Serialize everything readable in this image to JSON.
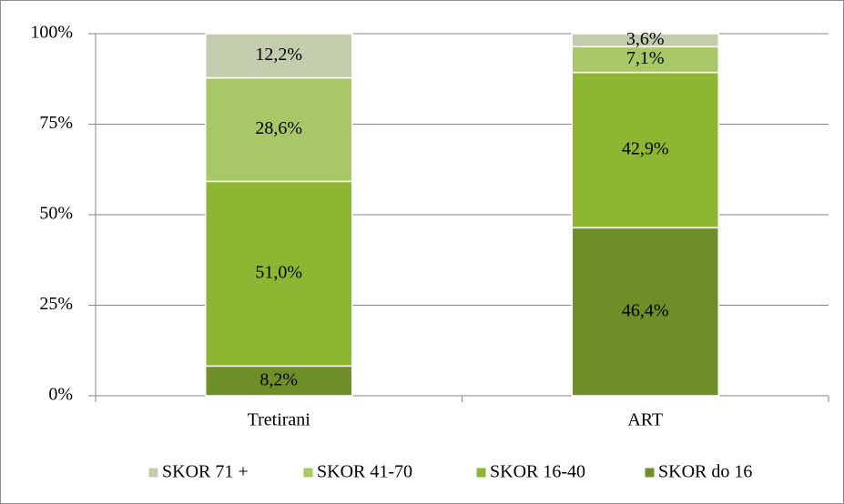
{
  "chart_data": {
    "type": "stacked_bar",
    "categories": [
      "Tretirani",
      "ART"
    ],
    "series": [
      {
        "name": "SKOR 71 +",
        "color": "#c3cdae",
        "values": [
          12.2,
          3.6
        ],
        "value_labels": [
          "12,2%",
          "3,6%"
        ]
      },
      {
        "name": "SKOR 41-70",
        "color": "#a8c767",
        "values": [
          28.6,
          7.1
        ],
        "value_labels": [
          "28,6%",
          "7,1%"
        ]
      },
      {
        "name": "SKOR 16-40",
        "color": "#8db733",
        "values": [
          51.0,
          42.9
        ],
        "value_labels": [
          "51,0%",
          "42,9%"
        ]
      },
      {
        "name": "SKOR do 16",
        "color": "#6e8f27",
        "values": [
          8.2,
          46.4
        ],
        "value_labels": [
          "8,2%",
          "46,4%"
        ]
      }
    ],
    "ylim": [
      0,
      100
    ],
    "yticks": [
      {
        "value": 0,
        "label": "0%"
      },
      {
        "value": 25,
        "label": "25%"
      },
      {
        "value": 50,
        "label": "50%"
      },
      {
        "value": 75,
        "label": "75%"
      },
      {
        "value": 100,
        "label": "100%"
      }
    ],
    "grid": true,
    "legend": "bottom"
  }
}
